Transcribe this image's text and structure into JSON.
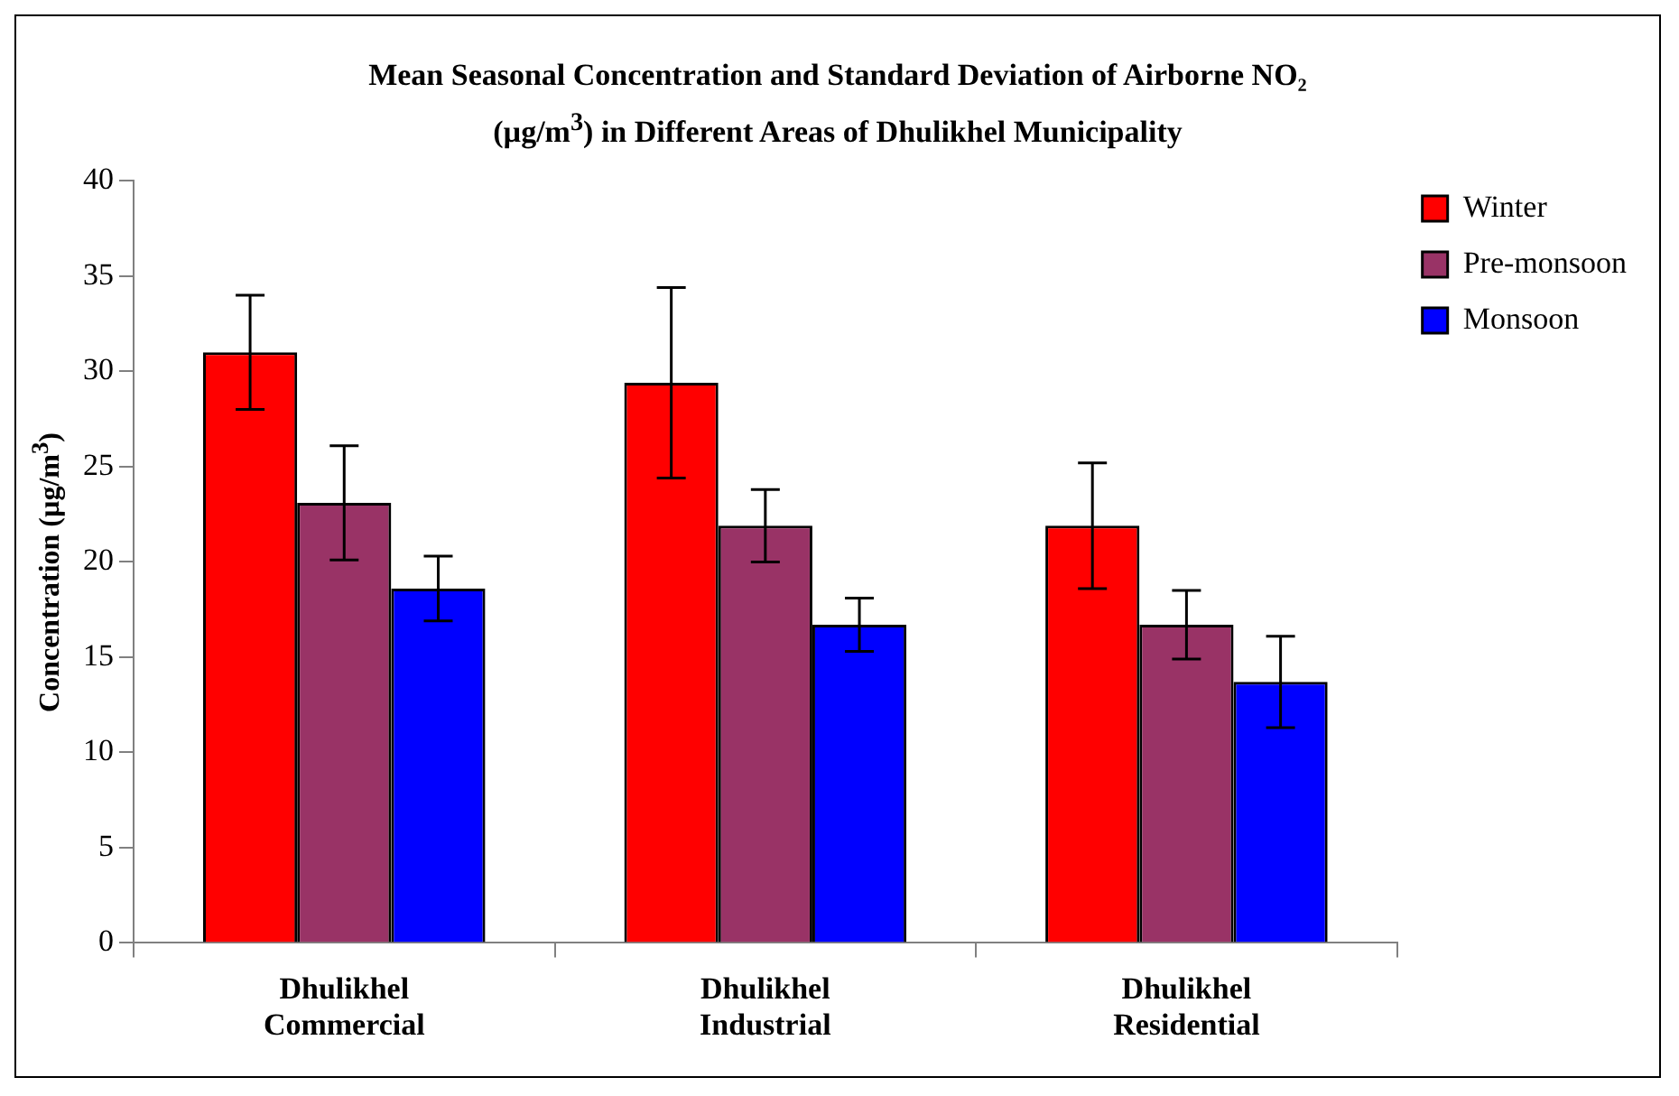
{
  "chart_data": {
    "type": "bar",
    "title": "Mean Seasonal Concentration and Standard Deviation of Airborne NO₂ (µg/m$^{3}$) in Different Areas of Dhulikhel Municipality",
    "ylabel": "Concentration (µg/m$^{3}$)",
    "categories": [
      "Dhulikhel Commercial",
      "Dhulikhel Industrial",
      "Dhulikhel Residential"
    ],
    "series": [
      {
        "name": "Winter",
        "color": "#ff0000",
        "values": [
          31,
          29.4,
          21.9
        ],
        "errors": [
          3,
          5,
          3.3
        ]
      },
      {
        "name": "Pre-monsoon",
        "color": "#993366",
        "values": [
          23.1,
          21.9,
          16.7
        ],
        "errors": [
          3,
          1.9,
          1.8
        ]
      },
      {
        "name": "Monsoon",
        "color": "#0000ff",
        "values": [
          18.6,
          16.7,
          13.7
        ],
        "errors": [
          1.7,
          1.4,
          2.4
        ]
      }
    ],
    "ylim": [
      0,
      40
    ],
    "yticks": [
      0,
      5,
      10,
      15,
      20,
      25,
      30,
      35,
      40
    ],
    "grid": false,
    "legend": "top right"
  }
}
